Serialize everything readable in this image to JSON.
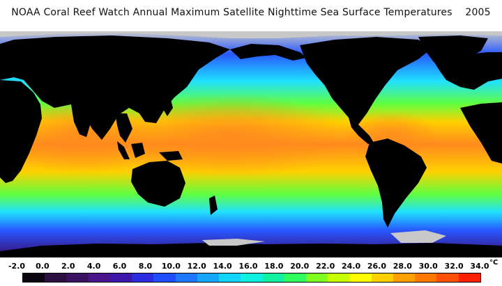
{
  "title": "NOAA Coral Reef Watch Annual Maximum Satellite Nighttime Sea Surface Temperatures    2005",
  "colorbar": {
    "unit": "°C",
    "ticks": [
      "-2.0",
      "0.0",
      "2.0",
      "4.0",
      "6.0",
      "8.0",
      "10.0",
      "12.0",
      "14.0",
      "16.0",
      "18.0",
      "20.0",
      "22.0",
      "24.0",
      "26.0",
      "28.0",
      "30.0",
      "32.0",
      "34.0"
    ],
    "colors": [
      "#0a0410",
      "#2a0f3f",
      "#3a1060",
      "#4a148a",
      "#3d17a8",
      "#2b2be0",
      "#1f4dff",
      "#1e78ff",
      "#15a6ff",
      "#11d4ff",
      "#10f0e0",
      "#10f0a0",
      "#30ff60",
      "#7fff20",
      "#c8ff00",
      "#ffff00",
      "#ffd000",
      "#ffa000",
      "#ff7800",
      "#ff5000",
      "#ff2000"
    ]
  },
  "map_colors": {
    "ocean_polar": "#3b0a6e",
    "ocean_subpolar": "#2858ff",
    "ocean_temperate": "#20e0ff",
    "ocean_subtropic": "#60ff40",
    "ocean_tropic": "#ffd000",
    "ocean_warm_pool": "#ff8a1e",
    "land": "#000000",
    "ice": "#c8c8c8"
  }
}
